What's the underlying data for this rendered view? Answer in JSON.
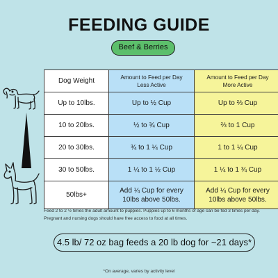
{
  "title": "FEEDING GUIDE",
  "flavor": "Beef & Berries",
  "table": {
    "headers": [
      "Dog Weight",
      "Amount to Feed per Day\nLess Active",
      "Amount to Feed per Day\nMore Active"
    ],
    "header_less_line1": "Amount to Feed per Day",
    "header_less_line2": "Less Active",
    "header_more_line1": "Amount to Feed per Day",
    "header_more_line2": "More Active",
    "rows": [
      [
        "Up to 10lbs.",
        "Up to ½ Cup",
        "Up to ⅔ Cup"
      ],
      [
        "10 to 20lbs.",
        "½ to ¾ Cup",
        "⅔ to 1 Cup"
      ],
      [
        "20 to 30lbs.",
        "¾ to 1 ¼ Cup",
        "1 to 1 ¼ Cup"
      ],
      [
        "30 to 50lbs.",
        "1 ¼ to 1 ½ Cup",
        "1 ¼ to 1 ¾ Cup"
      ]
    ],
    "last_row": {
      "weight": "50lbs+",
      "less_line1": "Add ¼ Cup for every",
      "less_line2": "10lbs above 50lbs.",
      "more_line1": "Add ¼ Cup for every",
      "more_line2": "10lbs above 50lbs."
    }
  },
  "footnote": "Feed 2 to 2 ½ times the adult amount to puppies. Puppies up to 6 months of age can be fed 3 times per day. Pregnant and nursing dogs should have free access to food at all times.",
  "bag_note": "4.5 lb/ 72 oz bag feeds a 20 lb dog for ~21 days*",
  "average_note": "*On average, varies by activity level",
  "colors": {
    "background": "#bfe3e8",
    "pill": "#5cbf6b",
    "less_active": "#b9e0f7",
    "more_active": "#f6f49a"
  },
  "icons": [
    "small-dog-icon",
    "large-dog-icon",
    "size-scale-icon"
  ]
}
